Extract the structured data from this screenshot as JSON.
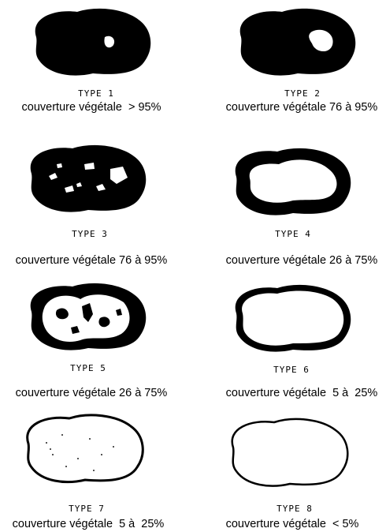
{
  "figure": {
    "items": [
      {
        "type": "TYPE 1",
        "cover": "couverture végétale  > 95%"
      },
      {
        "type": "TYPE 2",
        "cover": "couverture végétale 76 à 95%"
      },
      {
        "type": "TYPE 3",
        "cover": "couverture végétale 76 à 95%"
      },
      {
        "type": "TYPE 4",
        "cover": "couverture végétale 26 à 75%"
      },
      {
        "type": "TYPE 5",
        "cover": "couverture végétale 26 à 75%"
      },
      {
        "type": "TYPE 6",
        "cover": "couverture végétale  5 à  25%"
      },
      {
        "type": "TYPE 7",
        "cover": "couverture végétale  5 à  25%"
      },
      {
        "type": "TYPE 8",
        "cover": "couverture végétale  < 5%"
      }
    ]
  }
}
